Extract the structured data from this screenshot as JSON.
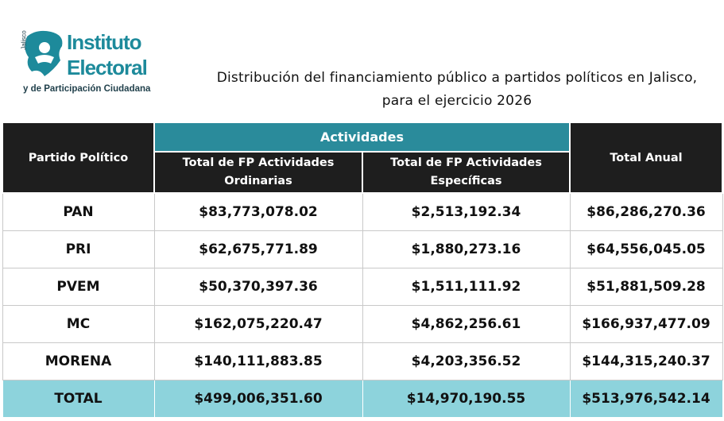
{
  "logo": {
    "state": "Jalisco",
    "line1": "Instituto",
    "line2": "Electoral",
    "line3": "y de Participación Ciudadana"
  },
  "title": [
    "Distribución del financiamiento público a partidos políticos en Jalisco,",
    "para el ejercicio 2026"
  ],
  "table": {
    "header": {
      "party": "Partido Político",
      "group": "Actividades",
      "ordinary": "Total de FP Actividades Ordinarias",
      "specific": "Total de FP Actividades Específicas",
      "total": "Total Anual"
    },
    "rows": [
      [
        "PAN",
        "$83,773,078.02",
        "$2,513,192.34",
        "$86,286,270.36"
      ],
      [
        "PRI",
        "$62,675,771.89",
        "$1,880,273.16",
        "$64,556,045.05"
      ],
      [
        "PVEM",
        "$50,370,397.36",
        "$1,511,111.92",
        "$51,881,509.28"
      ],
      [
        "MC",
        "$162,075,220.47",
        "$4,862,256.61",
        "$166,937,477.09"
      ],
      [
        "MORENA",
        "$140,111,883.85",
        "$4,203,356.52",
        "$144,315,240.37"
      ],
      [
        "TOTAL",
        "$499,006,351.60",
        "$14,970,190.55",
        "$513,976,542.14"
      ]
    ]
  }
}
